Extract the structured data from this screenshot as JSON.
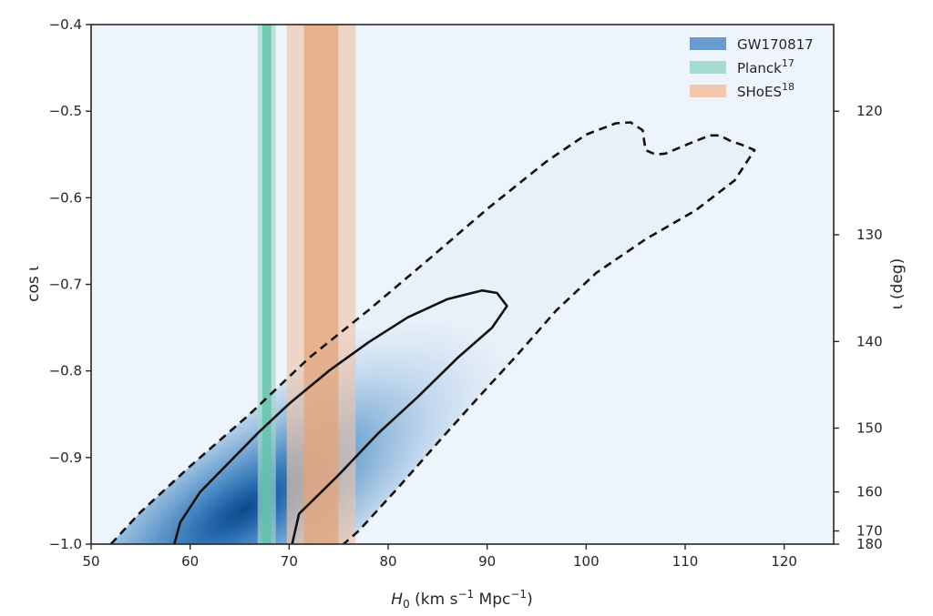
{
  "chart_data": {
    "type": "contour",
    "xlabel_main": "H",
    "xlabel_sub": "0",
    "xlabel_units": "(km s",
    "xlabel_exp1": "−1",
    "xlabel_units2": " Mpc",
    "xlabel_exp2": "−1",
    "xlabel_close": ")",
    "ylabel": "cos ι",
    "ylabel_right": "ι (deg)",
    "xlim": [
      50,
      125
    ],
    "ylim": [
      -1.0,
      -0.4
    ],
    "xticks": [
      50,
      60,
      70,
      80,
      90,
      100,
      110,
      120
    ],
    "xtick_labels": [
      "50",
      "60",
      "70",
      "80",
      "90",
      "100",
      "110",
      "120"
    ],
    "yticks": [
      -1.0,
      -0.9,
      -0.8,
      -0.7,
      -0.6,
      -0.5,
      -0.4
    ],
    "ytick_labels": [
      "−1.0",
      "−0.9",
      "−0.8",
      "−0.7",
      "−0.6",
      "−0.5",
      "−0.4"
    ],
    "right_ticks_deg": [
      120,
      130,
      140,
      150,
      160,
      170,
      180
    ],
    "right_tick_labels": [
      "120",
      "130",
      "140",
      "150",
      "160",
      "170",
      "180"
    ],
    "legend": [
      {
        "name": "GW170817",
        "sup": "",
        "color": "#6a9bcf"
      },
      {
        "name": "Planck",
        "sup": "17",
        "color": "#a6dcd0"
      },
      {
        "name": "SHoES",
        "sup": "18",
        "color": "#f2c7ad"
      }
    ],
    "bands": [
      {
        "name": "Planck",
        "center": 67.74,
        "sigma1": 0.46,
        "sigma2": 0.92,
        "inner_color": "#5fc2a8",
        "outer_color": "#9fd8c9"
      },
      {
        "name": "SHoES",
        "center": 73.24,
        "sigma1": 1.74,
        "sigma2": 3.48,
        "inner_color": "#e3a47a",
        "outer_color": "#f0c5aa"
      }
    ],
    "gw_peak": {
      "H0": 65.5,
      "cos_iota": -0.96
    },
    "contour_68": [
      [
        58.4,
        -1.0
      ],
      [
        59.0,
        -0.975
      ],
      [
        61.0,
        -0.94
      ],
      [
        64.0,
        -0.905
      ],
      [
        67.0,
        -0.87
      ],
      [
        70.0,
        -0.838
      ],
      [
        74.0,
        -0.8
      ],
      [
        78.0,
        -0.767
      ],
      [
        82.0,
        -0.738
      ],
      [
        86.0,
        -0.717
      ],
      [
        89.5,
        -0.707
      ],
      [
        91.0,
        -0.71
      ],
      [
        92.0,
        -0.725
      ],
      [
        90.5,
        -0.75
      ],
      [
        87.0,
        -0.785
      ],
      [
        83.0,
        -0.83
      ],
      [
        79.0,
        -0.872
      ],
      [
        75.0,
        -0.92
      ],
      [
        71.0,
        -0.965
      ],
      [
        70.3,
        -1.0
      ]
    ],
    "contour_95": [
      [
        52.0,
        -1.0
      ],
      [
        55.0,
        -0.963
      ],
      [
        60.0,
        -0.91
      ],
      [
        66.0,
        -0.85
      ],
      [
        72.0,
        -0.785
      ],
      [
        78.0,
        -0.73
      ],
      [
        84.0,
        -0.672
      ],
      [
        90.0,
        -0.613
      ],
      [
        96.0,
        -0.558
      ],
      [
        100.0,
        -0.527
      ],
      [
        103.0,
        -0.514
      ],
      [
        104.5,
        -0.513
      ],
      [
        105.7,
        -0.522
      ],
      [
        106.0,
        -0.545
      ],
      [
        107.0,
        -0.55
      ],
      [
        108.0,
        -0.549
      ],
      [
        110.5,
        -0.537
      ],
      [
        112.5,
        -0.528
      ],
      [
        113.5,
        -0.528
      ],
      [
        114.5,
        -0.534
      ],
      [
        116.0,
        -0.54
      ],
      [
        117.0,
        -0.545
      ],
      [
        115.0,
        -0.58
      ],
      [
        111.0,
        -0.615
      ],
      [
        106.0,
        -0.648
      ],
      [
        101.0,
        -0.687
      ],
      [
        97.0,
        -0.73
      ],
      [
        93.0,
        -0.782
      ],
      [
        89.0,
        -0.832
      ],
      [
        85.0,
        -0.883
      ],
      [
        81.0,
        -0.935
      ],
      [
        77.0,
        -0.985
      ],
      [
        75.5,
        -1.0
      ]
    ]
  }
}
